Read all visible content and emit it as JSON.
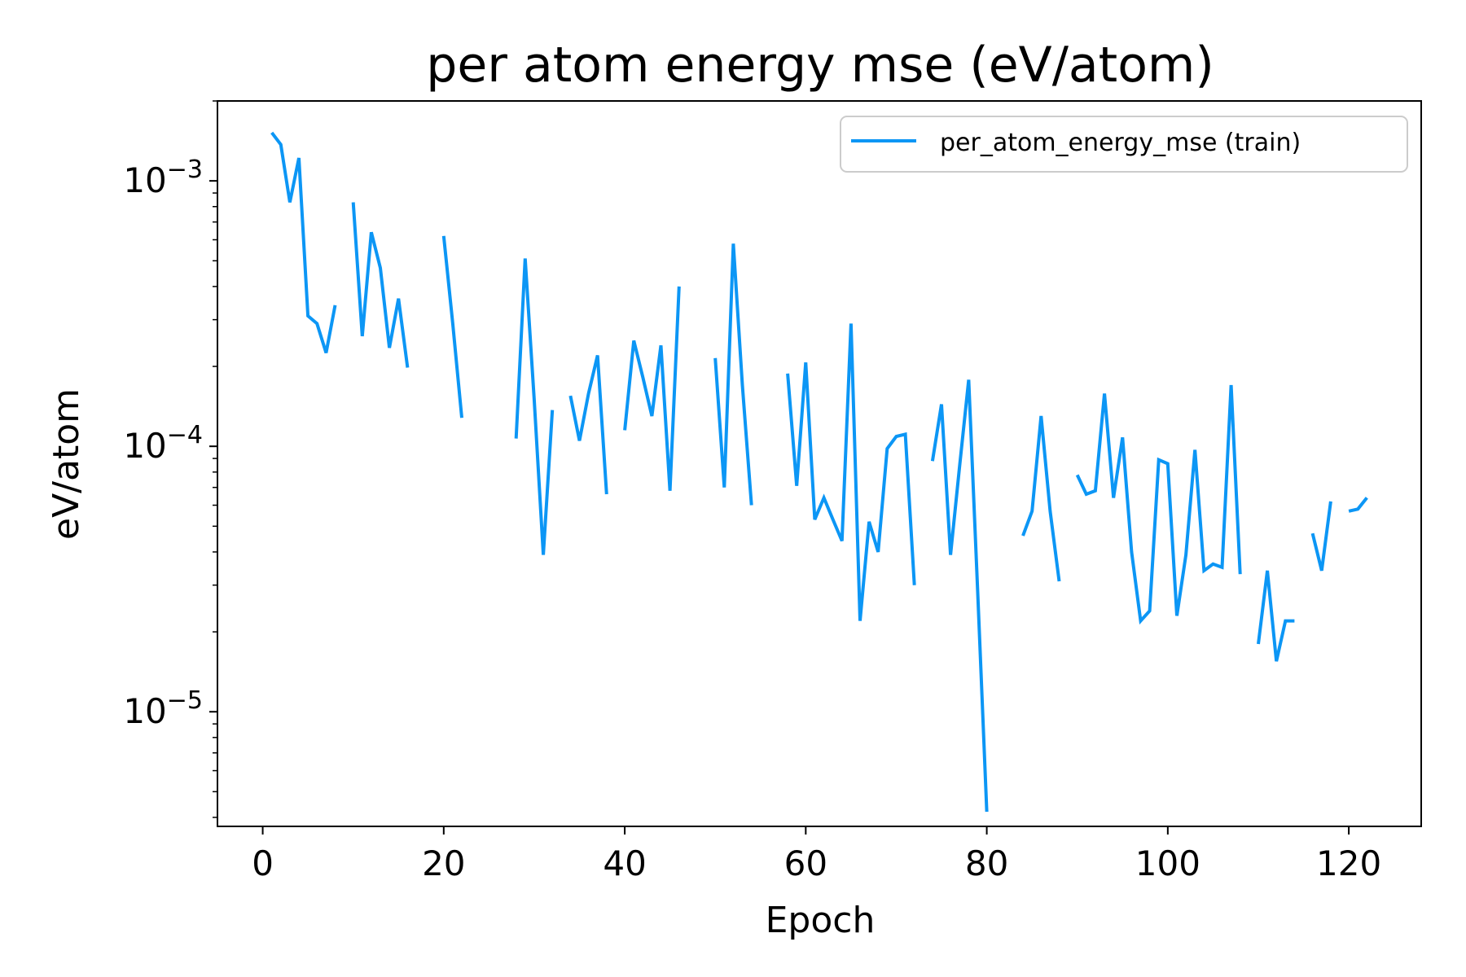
{
  "chart_data": {
    "type": "line",
    "title": "per atom energy mse (eV/atom)",
    "xlabel": "Epoch",
    "ylabel": "eV/atom",
    "yscale": "log",
    "xlim": [
      -5,
      128
    ],
    "ylim": [
      3.7e-06,
      0.002
    ],
    "xticks": [
      0,
      20,
      40,
      60,
      80,
      100,
      120
    ],
    "yticks": [
      {
        "value": 1e-05,
        "base": "10",
        "exponent": "−5"
      },
      {
        "value": 0.0001,
        "base": "10",
        "exponent": "−4"
      },
      {
        "value": 0.001,
        "base": "10",
        "exponent": "−3"
      }
    ],
    "grid": false,
    "legend_position": "top-right",
    "series": [
      {
        "name": "per_atom_energy_mse (train)",
        "color": "#0c96f5",
        "points": [
          [
            1,
            0.00152
          ],
          [
            2,
            0.00137
          ],
          [
            3,
            0.00083
          ],
          [
            4,
            0.00122
          ],
          [
            5,
            0.00031
          ],
          [
            6,
            0.00029
          ],
          [
            7,
            0.000225
          ],
          [
            8,
            0.00034
          ],
          [
            9,
            null
          ],
          [
            10,
            0.00083
          ],
          [
            11,
            0.00026
          ],
          [
            12,
            0.00064
          ],
          [
            13,
            0.00047
          ],
          [
            14,
            0.000235
          ],
          [
            15,
            0.00036
          ],
          [
            16,
            0.000198
          ],
          [
            17,
            null
          ],
          [
            20,
            0.00062
          ],
          [
            21,
            0.00029
          ],
          [
            22,
            0.000128
          ],
          [
            23,
            null
          ],
          [
            28,
            0.000107
          ],
          [
            29,
            0.00051
          ],
          [
            30,
            0.00015
          ],
          [
            31,
            3.9e-05
          ],
          [
            32,
            0.000137
          ],
          [
            33,
            null
          ],
          [
            34,
            0.000155
          ],
          [
            35,
            0.000105
          ],
          [
            36,
            0.000158
          ],
          [
            37,
            0.00022
          ],
          [
            38,
            6.6e-05
          ],
          [
            39,
            null
          ],
          [
            40,
            0.000115
          ],
          [
            41,
            0.00025
          ],
          [
            42,
            0.000182
          ],
          [
            43,
            0.00013
          ],
          [
            44,
            0.00024
          ],
          [
            45,
            6.8e-05
          ],
          [
            46,
            0.0004
          ],
          [
            47,
            null
          ],
          [
            50,
            0.000215
          ],
          [
            51,
            7e-05
          ],
          [
            52,
            0.00058
          ],
          [
            53,
            0.00017
          ],
          [
            54,
            6e-05
          ],
          [
            55,
            null
          ],
          [
            58,
            0.000188
          ],
          [
            59,
            7.1e-05
          ],
          [
            60,
            0.000207
          ],
          [
            61,
            5.3e-05
          ],
          [
            62,
            6.4e-05
          ],
          [
            63,
            5.3e-05
          ],
          [
            64,
            4.4e-05
          ],
          [
            65,
            0.00029
          ],
          [
            66,
            2.2e-05
          ],
          [
            67,
            5.2e-05
          ],
          [
            68,
            4e-05
          ],
          [
            69,
            9.8e-05
          ],
          [
            70,
            0.000109
          ],
          [
            71,
            0.000111
          ],
          [
            72,
            3e-05
          ],
          [
            73,
            null
          ],
          [
            74,
            8.8e-05
          ],
          [
            75,
            0.000144
          ],
          [
            76,
            3.9e-05
          ],
          [
            77,
            8.4e-05
          ],
          [
            78,
            0.000178
          ],
          [
            79,
            2.8e-05
          ],
          [
            80,
            4.2e-06
          ],
          [
            81,
            null
          ],
          [
            84,
            4.6e-05
          ],
          [
            85,
            5.7e-05
          ],
          [
            86,
            0.00013
          ],
          [
            87,
            5.7e-05
          ],
          [
            88,
            3.1e-05
          ],
          [
            89,
            null
          ],
          [
            90,
            7.8e-05
          ],
          [
            91,
            6.6e-05
          ],
          [
            92,
            6.8e-05
          ],
          [
            93,
            0.000158
          ],
          [
            94,
            6.4e-05
          ],
          [
            95,
            0.000108
          ],
          [
            96,
            4e-05
          ],
          [
            97,
            2.2e-05
          ],
          [
            98,
            2.4e-05
          ],
          [
            99,
            8.9e-05
          ],
          [
            100,
            8.6e-05
          ],
          [
            101,
            2.3e-05
          ],
          [
            102,
            3.9e-05
          ],
          [
            103,
            9.7e-05
          ],
          [
            104,
            3.4e-05
          ],
          [
            105,
            3.6e-05
          ],
          [
            106,
            3.5e-05
          ],
          [
            107,
            0.00017
          ],
          [
            108,
            3.3e-05
          ],
          [
            109,
            null
          ],
          [
            110,
            1.8e-05
          ],
          [
            111,
            3.4e-05
          ],
          [
            112,
            1.55e-05
          ],
          [
            113,
            2.2e-05
          ],
          [
            114,
            2.2e-05
          ],
          [
            115,
            null
          ],
          [
            116,
            4.7e-05
          ],
          [
            117,
            3.4e-05
          ],
          [
            118,
            6.2e-05
          ],
          [
            119,
            null
          ],
          [
            120,
            5.7e-05
          ],
          [
            121,
            5.8e-05
          ],
          [
            122,
            6.4e-05
          ]
        ]
      }
    ]
  }
}
